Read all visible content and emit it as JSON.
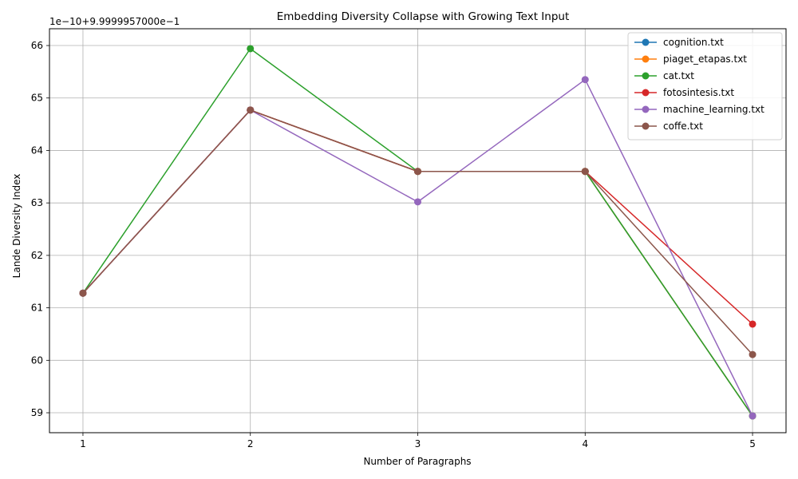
{
  "chart_data": {
    "type": "line",
    "title": "Embedding Diversity Collapse with Growing Text Input",
    "xlabel": "Number of Paragraphs",
    "ylabel": "Lande Diversity Index",
    "y_offset_label": "1e−10+9.9999957000e−1",
    "x": [
      1,
      2,
      3,
      4,
      5
    ],
    "xticks": [
      "1",
      "2",
      "3",
      "4",
      "5"
    ],
    "yticks": [
      "59",
      "60",
      "61",
      "62",
      "63",
      "64",
      "65",
      "66"
    ],
    "ylim": [
      58.62,
      66.32
    ],
    "xlim": [
      0.8,
      5.2
    ],
    "grid": true,
    "legend_position": "top-right",
    "series": [
      {
        "name": "cognition.txt",
        "color": "#1f77b4",
        "values": [
          61.28,
          64.77,
          63.6,
          63.6,
          58.94
        ]
      },
      {
        "name": "piaget_etapas.txt",
        "color": "#ff7f0e",
        "values": [
          61.28,
          64.77,
          63.6,
          63.6,
          58.94
        ]
      },
      {
        "name": "cat.txt",
        "color": "#2ca02c",
        "values": [
          61.28,
          65.94,
          63.6,
          63.6,
          58.94
        ]
      },
      {
        "name": "fotosintesis.txt",
        "color": "#d62728",
        "values": [
          61.28,
          64.77,
          63.6,
          63.6,
          60.69
        ]
      },
      {
        "name": "machine_learning.txt",
        "color": "#9467bd",
        "values": [
          61.28,
          64.77,
          63.02,
          65.35,
          58.94
        ]
      },
      {
        "name": "coffe.txt",
        "color": "#8c564b",
        "values": [
          61.28,
          64.77,
          63.6,
          63.6,
          60.11
        ]
      }
    ]
  }
}
